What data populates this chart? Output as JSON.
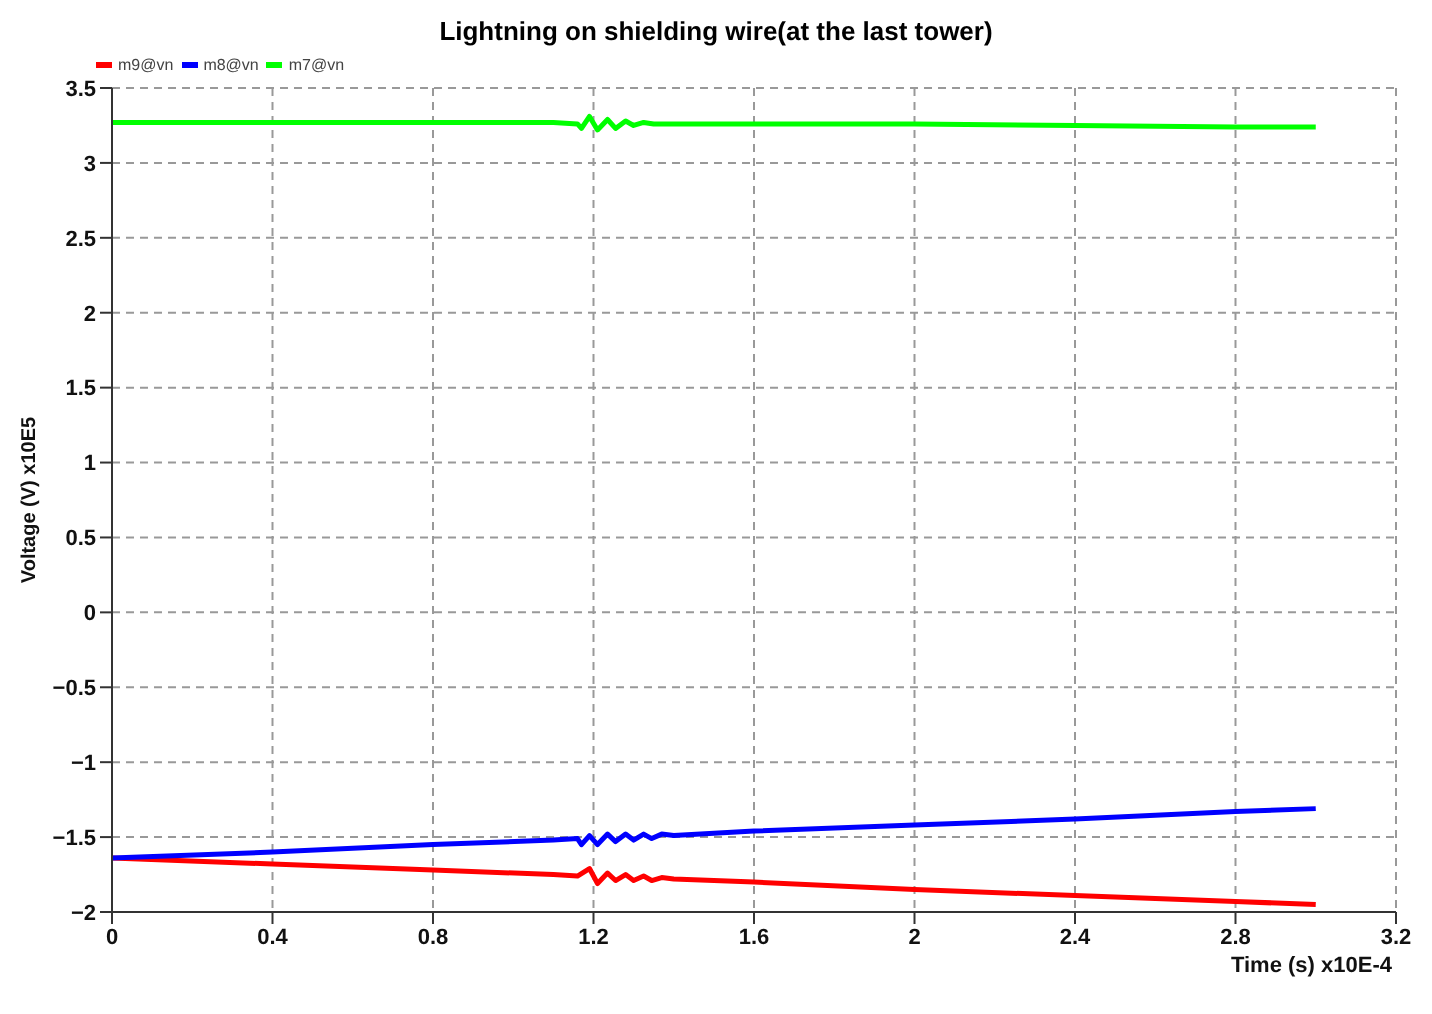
{
  "chart_data": {
    "type": "line",
    "title": "Lightning on shielding wire(at the last tower)",
    "xlabel": "Time (s) x10E-4",
    "ylabel": "Voltage (V) x10E5",
    "xlim": [
      0,
      3.2
    ],
    "xticks": [
      0,
      0.4,
      0.8,
      1.2,
      1.6,
      2,
      2.4,
      2.8,
      3.2
    ],
    "ylim": [
      -2,
      3.5
    ],
    "yticks": [
      {
        "value": -2,
        "label": "−2"
      },
      {
        "value": -1.5,
        "label": "−1.5"
      },
      {
        "value": -1,
        "label": "−1"
      },
      {
        "value": -0.5,
        "label": "−0.5"
      },
      0,
      0.5,
      1,
      1.5,
      2,
      2.5,
      3,
      3.5
    ],
    "grid": true,
    "legend": "top left",
    "marker": "none",
    "line_style": "solid",
    "series": [
      {
        "name": "m9@vn",
        "color": "#ff0000",
        "x": [
          0,
          0.4,
          0.8,
          1.1,
          1.16,
          1.19,
          1.21,
          1.235,
          1.255,
          1.28,
          1.3,
          1.325,
          1.345,
          1.37,
          1.4,
          1.6,
          2,
          2.4,
          2.8,
          3
        ],
        "values": [
          -1.64,
          -1.68,
          -1.72,
          -1.75,
          -1.76,
          -1.71,
          -1.81,
          -1.74,
          -1.79,
          -1.75,
          -1.79,
          -1.76,
          -1.79,
          -1.77,
          -1.78,
          -1.8,
          -1.85,
          -1.89,
          -1.93,
          -1.95
        ]
      },
      {
        "name": "m8@vn",
        "color": "#0000ff",
        "x": [
          0,
          0.4,
          0.8,
          1.1,
          1.16,
          1.17,
          1.19,
          1.21,
          1.235,
          1.255,
          1.28,
          1.3,
          1.325,
          1.345,
          1.37,
          1.4,
          1.6,
          2,
          2.4,
          2.8,
          3
        ],
        "values": [
          -1.64,
          -1.6,
          -1.55,
          -1.52,
          -1.51,
          -1.55,
          -1.49,
          -1.55,
          -1.48,
          -1.53,
          -1.48,
          -1.52,
          -1.48,
          -1.51,
          -1.48,
          -1.49,
          -1.46,
          -1.42,
          -1.38,
          -1.33,
          -1.31
        ]
      },
      {
        "name": "m7@vn",
        "color": "#00ff00",
        "x": [
          0,
          0.8,
          1.1,
          1.16,
          1.17,
          1.19,
          1.21,
          1.235,
          1.255,
          1.28,
          1.3,
          1.325,
          1.35,
          1.6,
          2,
          2.4,
          2.8,
          3
        ],
        "values": [
          3.27,
          3.27,
          3.27,
          3.26,
          3.23,
          3.31,
          3.22,
          3.29,
          3.23,
          3.28,
          3.25,
          3.27,
          3.26,
          3.26,
          3.26,
          3.25,
          3.24,
          3.24
        ]
      }
    ]
  }
}
